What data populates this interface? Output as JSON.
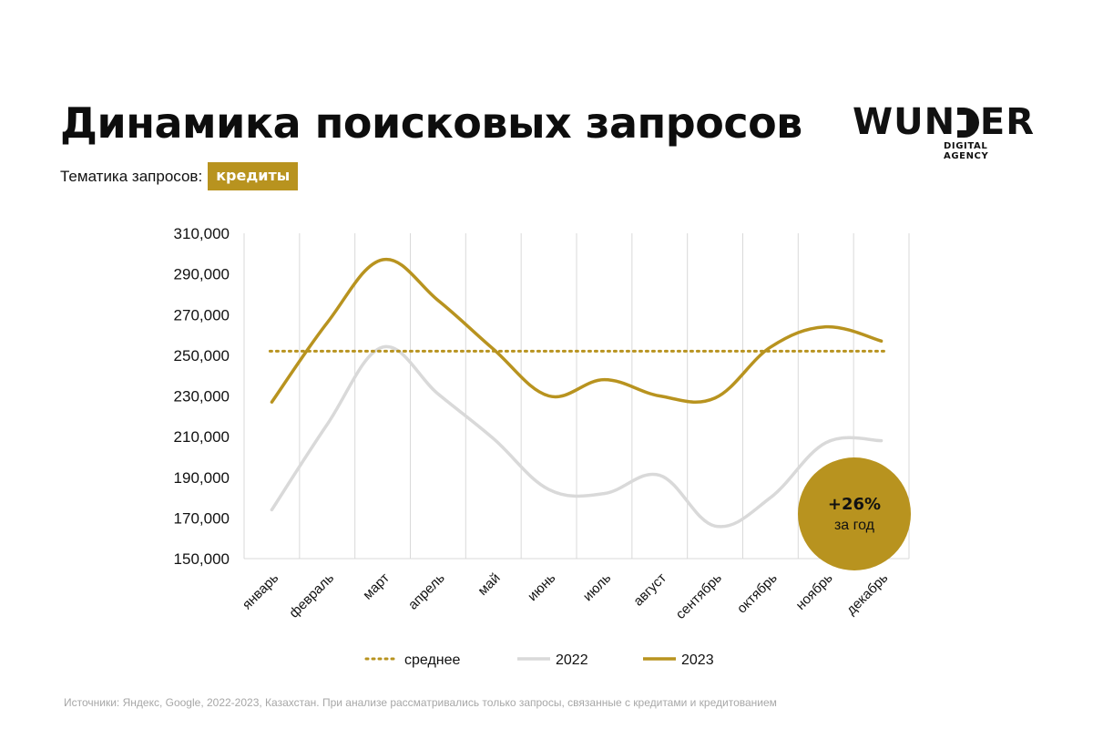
{
  "header": {
    "title": "Динамика поисковых запросов",
    "topic_label": "Тематика запросов:",
    "topic_value": "кредиты"
  },
  "logo": {
    "name_left": "WUN",
    "name_right": "ER",
    "tagline": "DIGITAL AGENCY"
  },
  "badge": {
    "value": "+26%",
    "label": "за год"
  },
  "footnote": "Источники: Яндекс, Google, 2022-2023, Казахстан. При анализе рассматривались только запросы, связанные с кредитами и кредитованием",
  "chart_data": {
    "type": "line",
    "title": "",
    "xlabel": "",
    "ylabel": "",
    "categories": [
      "январь",
      "февраль",
      "март",
      "апрель",
      "май",
      "июнь",
      "июль",
      "август",
      "сентябрь",
      "октябрь",
      "ноябрь",
      "декабрь"
    ],
    "ylim": [
      150000,
      310000
    ],
    "yticks": [
      150000,
      170000,
      190000,
      210000,
      230000,
      250000,
      270000,
      290000,
      310000
    ],
    "ytick_labels": [
      "150,000",
      "170,000",
      "190,000",
      "210,000",
      "230,000",
      "250,000",
      "270,000",
      "290,000",
      "310,000"
    ],
    "grid": "vertical",
    "legend": "bottom",
    "series": [
      {
        "name": "2022",
        "style": "solid",
        "color": "#d9d9d9",
        "values": [
          174000,
          216000,
          254000,
          231000,
          209000,
          184000,
          182000,
          191000,
          166000,
          180000,
          207000,
          208000
        ]
      },
      {
        "name": "2023",
        "style": "solid",
        "color": "#b8931f",
        "values": [
          227000,
          266000,
          297000,
          277000,
          253000,
          230000,
          238000,
          230000,
          229000,
          254000,
          264000,
          257000
        ]
      },
      {
        "name": "среднее",
        "style": "dotted",
        "color": "#b8931f",
        "values": [
          252000,
          252000,
          252000,
          252000,
          252000,
          252000,
          252000,
          252000,
          252000,
          252000,
          252000,
          252000
        ]
      }
    ]
  }
}
